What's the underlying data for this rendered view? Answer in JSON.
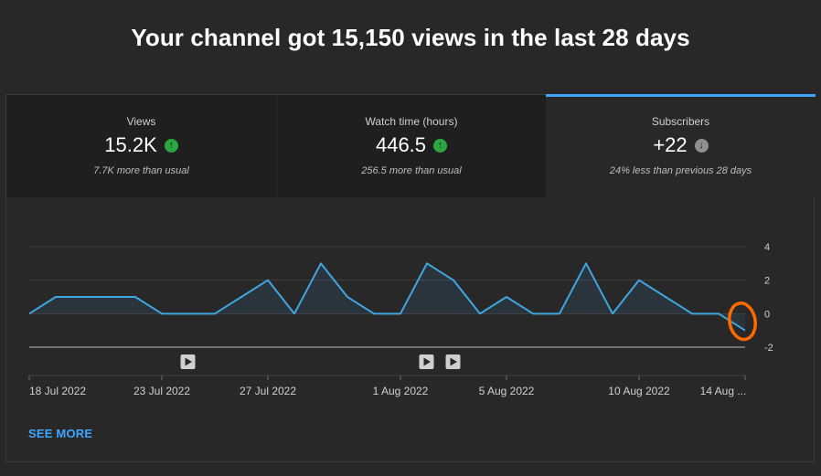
{
  "headline": "Your channel got 15,150 views in the last 28 days",
  "tabs": [
    {
      "label": "Views",
      "value": "15.2K",
      "trend": "up",
      "subtitle": "7.7K more than usual"
    },
    {
      "label": "Watch time (hours)",
      "value": "446.5",
      "trend": "up",
      "subtitle": "256.5 more than usual"
    },
    {
      "label": "Subscribers",
      "value": "+22",
      "trend": "down",
      "subtitle": "24% less than previous 28 days",
      "selected": true
    }
  ],
  "colors": {
    "accent": "#3ea6ff",
    "up": "#2ba640",
    "down": "#909090",
    "annotation": "#ff6a00"
  },
  "see_more": "SEE MORE",
  "chart_data": {
    "type": "area",
    "x": [
      "2022-07-18",
      "2022-07-19",
      "2022-07-20",
      "2022-07-21",
      "2022-07-22",
      "2022-07-23",
      "2022-07-24",
      "2022-07-25",
      "2022-07-26",
      "2022-07-27",
      "2022-07-28",
      "2022-07-29",
      "2022-07-30",
      "2022-07-31",
      "2022-08-01",
      "2022-08-02",
      "2022-08-03",
      "2022-08-04",
      "2022-08-05",
      "2022-08-06",
      "2022-08-07",
      "2022-08-08",
      "2022-08-09",
      "2022-08-10",
      "2022-08-11",
      "2022-08-12",
      "2022-08-13",
      "2022-08-14"
    ],
    "values": [
      0,
      1,
      1,
      1,
      1,
      0,
      0,
      0,
      1,
      2,
      0,
      3,
      1,
      0,
      0,
      3,
      2,
      0,
      1,
      0,
      0,
      3,
      0,
      2,
      1,
      0,
      0,
      -1
    ],
    "x_tick_labels": [
      {
        "index": 0,
        "label": "18 Jul 2022"
      },
      {
        "index": 5,
        "label": "23 Jul 2022"
      },
      {
        "index": 9,
        "label": "27 Jul 2022"
      },
      {
        "index": 14,
        "label": "1 Aug 2022"
      },
      {
        "index": 18,
        "label": "5 Aug 2022"
      },
      {
        "index": 23,
        "label": "10 Aug 2022"
      },
      {
        "index": 27,
        "label": "14 Aug ..."
      }
    ],
    "y_ticks": [
      4,
      2,
      0,
      -2
    ],
    "ylim": [
      -2,
      4
    ],
    "video_markers": [
      6,
      15,
      16
    ],
    "annotation_circle_index": 27,
    "grid": true
  }
}
